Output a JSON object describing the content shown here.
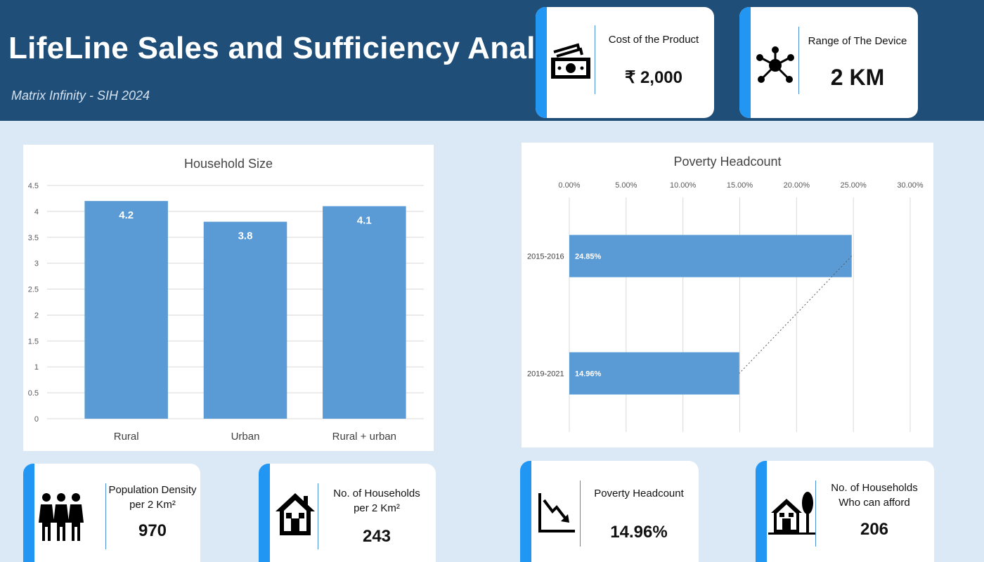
{
  "header": {
    "title": "LifeLine Sales and Sufficiency Analysis",
    "subtitle": "Matrix Infinity - SIH 2024"
  },
  "kpis": {
    "cost": {
      "label": "Cost of the Product",
      "value": "₹ 2,000",
      "icon": "money-icon"
    },
    "range": {
      "label": "Range of The Device",
      "value": "2 KM",
      "icon": "network-icon"
    },
    "population": {
      "label_line1": "Population Density",
      "label_line2": "per 2 Km²",
      "value": "970",
      "icon": "people-icon"
    },
    "households": {
      "label_line1": "No. of Households",
      "label_line2": "per 2 Km²",
      "value": "243",
      "icon": "house-icon"
    },
    "poverty": {
      "label": "Poverty Headcount",
      "value": "14.96%",
      "icon": "trend-down-icon"
    },
    "afford": {
      "label_line1": "No. of Households",
      "label_line2": "Who can afford",
      "value": "206",
      "icon": "home-tree-icon"
    }
  },
  "colors": {
    "header": "#1f4e79",
    "accent": "#2196f3",
    "bar": "#5b9bd5",
    "background": "#dbe9f6"
  },
  "chart_data": [
    {
      "type": "bar",
      "title": "Household Size",
      "categories": [
        "Rural",
        "Urban",
        "Rural + urban"
      ],
      "values": [
        4.2,
        3.8,
        4.1
      ],
      "data_labels": [
        "4.2",
        "3.8",
        "4.1"
      ],
      "ylim": [
        0,
        4.5
      ],
      "yticks": [
        "0",
        "0.5",
        "1",
        "1.5",
        "2",
        "2.5",
        "3",
        "3.5",
        "4",
        "4.5"
      ],
      "grid": true
    },
    {
      "type": "bar",
      "orientation": "horizontal",
      "title": "Poverty Headcount",
      "categories": [
        "2015-2016",
        "2019-2021"
      ],
      "values": [
        24.85,
        14.96
      ],
      "data_labels": [
        "24.85%",
        "14.96%"
      ],
      "xlim": [
        0,
        30
      ],
      "xticks": [
        "0.00%",
        "5.00%",
        "10.00%",
        "15.00%",
        "20.00%",
        "25.00%",
        "30.00%"
      ],
      "axis_position": "top",
      "trendline": "dotted",
      "grid": true
    }
  ]
}
